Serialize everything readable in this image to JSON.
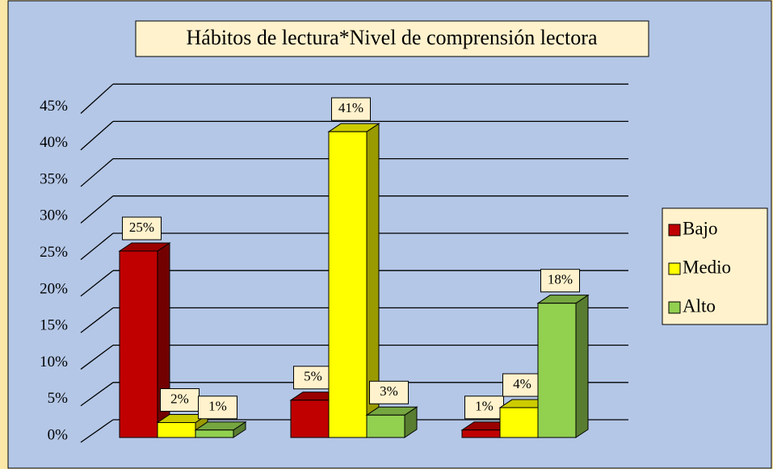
{
  "chart_data": {
    "type": "bar3d",
    "title": "Hábitos de lectura*Nivel de comprensión lectora",
    "categories": [
      null,
      null,
      null
    ],
    "series": [
      {
        "name": "Bajo",
        "color": "#c00000",
        "values": [
          25,
          5,
          1
        ],
        "value_labels": [
          "25%",
          "5%",
          "1%"
        ]
      },
      {
        "name": "Medio",
        "color": "#ffff00",
        "values": [
          2,
          41,
          4
        ],
        "value_labels": [
          "2%",
          "41%",
          "4%"
        ]
      },
      {
        "name": "Alto",
        "color": "#92d050",
        "values": [
          1,
          3,
          18
        ],
        "value_labels": [
          "1%",
          "3%",
          "18%"
        ]
      }
    ],
    "ylim": [
      0,
      50
    ],
    "yticks": [
      {
        "value": 0,
        "label": "0%"
      },
      {
        "value": 5,
        "label": "5%"
      },
      {
        "value": 10,
        "label": "10%"
      },
      {
        "value": 15,
        "label": "15%"
      },
      {
        "value": 20,
        "label": "20%"
      },
      {
        "value": 25,
        "label": "25%"
      },
      {
        "value": 30,
        "label": "30%"
      },
      {
        "value": 35,
        "label": "35%"
      },
      {
        "value": 40,
        "label": "40%"
      },
      {
        "value": 45,
        "label": "45%"
      }
    ],
    "grid": true,
    "legend": "right"
  }
}
